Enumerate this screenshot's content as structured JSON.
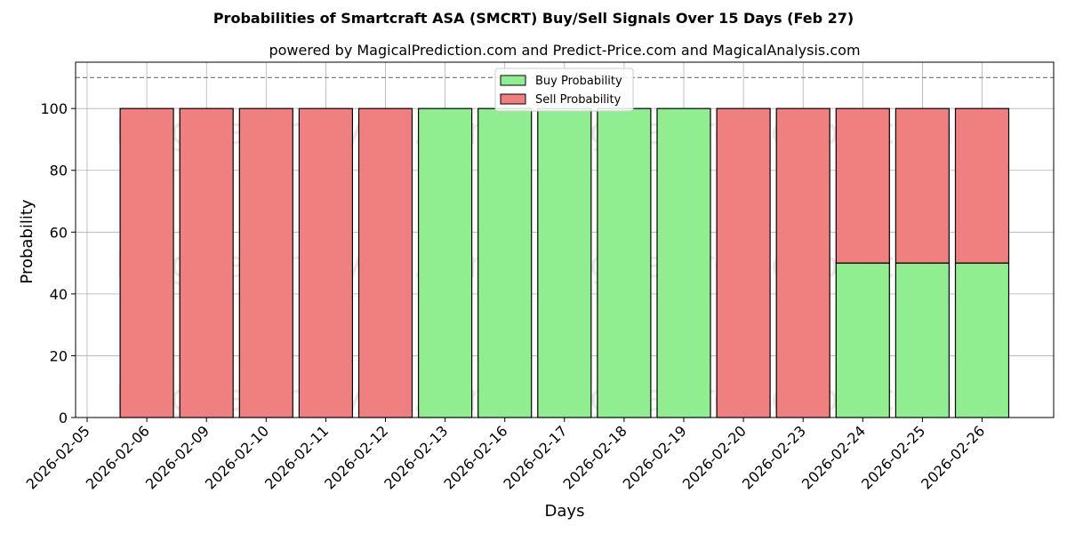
{
  "chart_data": {
    "type": "bar",
    "stacked": true,
    "title": "Probabilities of Smartcraft ASA (SMCRT) Buy/Sell Signals Over 15 Days (Feb 27)",
    "subtitle": "powered by MagicalPrediction.com and Predict-Price.com and MagicalAnalysis.com",
    "xlabel": "Days",
    "ylabel": "Probability",
    "ylim": [
      0,
      115
    ],
    "yticks": [
      0,
      20,
      40,
      60,
      80,
      100
    ],
    "reference_line": 110,
    "grid": true,
    "legend_position": "top-center",
    "x_tick_labels": [
      "2026-02-05",
      "2026-02-06",
      "2026-02-09",
      "2026-02-10",
      "2026-02-11",
      "2026-02-12",
      "2026-02-13",
      "2026-02-16",
      "2026-02-17",
      "2026-02-18",
      "2026-02-19",
      "2026-02-20",
      "2026-02-23",
      "2026-02-24",
      "2026-02-25",
      "2026-02-26"
    ],
    "categories": [
      "2026-02-06",
      "2026-02-09",
      "2026-02-10",
      "2026-02-11",
      "2026-02-12",
      "2026-02-13",
      "2026-02-16",
      "2026-02-17",
      "2026-02-18",
      "2026-02-19",
      "2026-02-20",
      "2026-02-23",
      "2026-02-24",
      "2026-02-25",
      "2026-02-26"
    ],
    "series": [
      {
        "name": "Buy Probability",
        "color": "#90ee90",
        "values": [
          0,
          0,
          0,
          0,
          0,
          100,
          100,
          100,
          100,
          100,
          0,
          0,
          50,
          50,
          50
        ]
      },
      {
        "name": "Sell Probability",
        "color": "#f08080",
        "values": [
          100,
          100,
          100,
          100,
          100,
          0,
          0,
          0,
          0,
          0,
          100,
          100,
          50,
          50,
          50
        ]
      }
    ],
    "watermarks": [
      "MagicalAnalysis.com",
      "MagicalPrediction.com"
    ]
  }
}
